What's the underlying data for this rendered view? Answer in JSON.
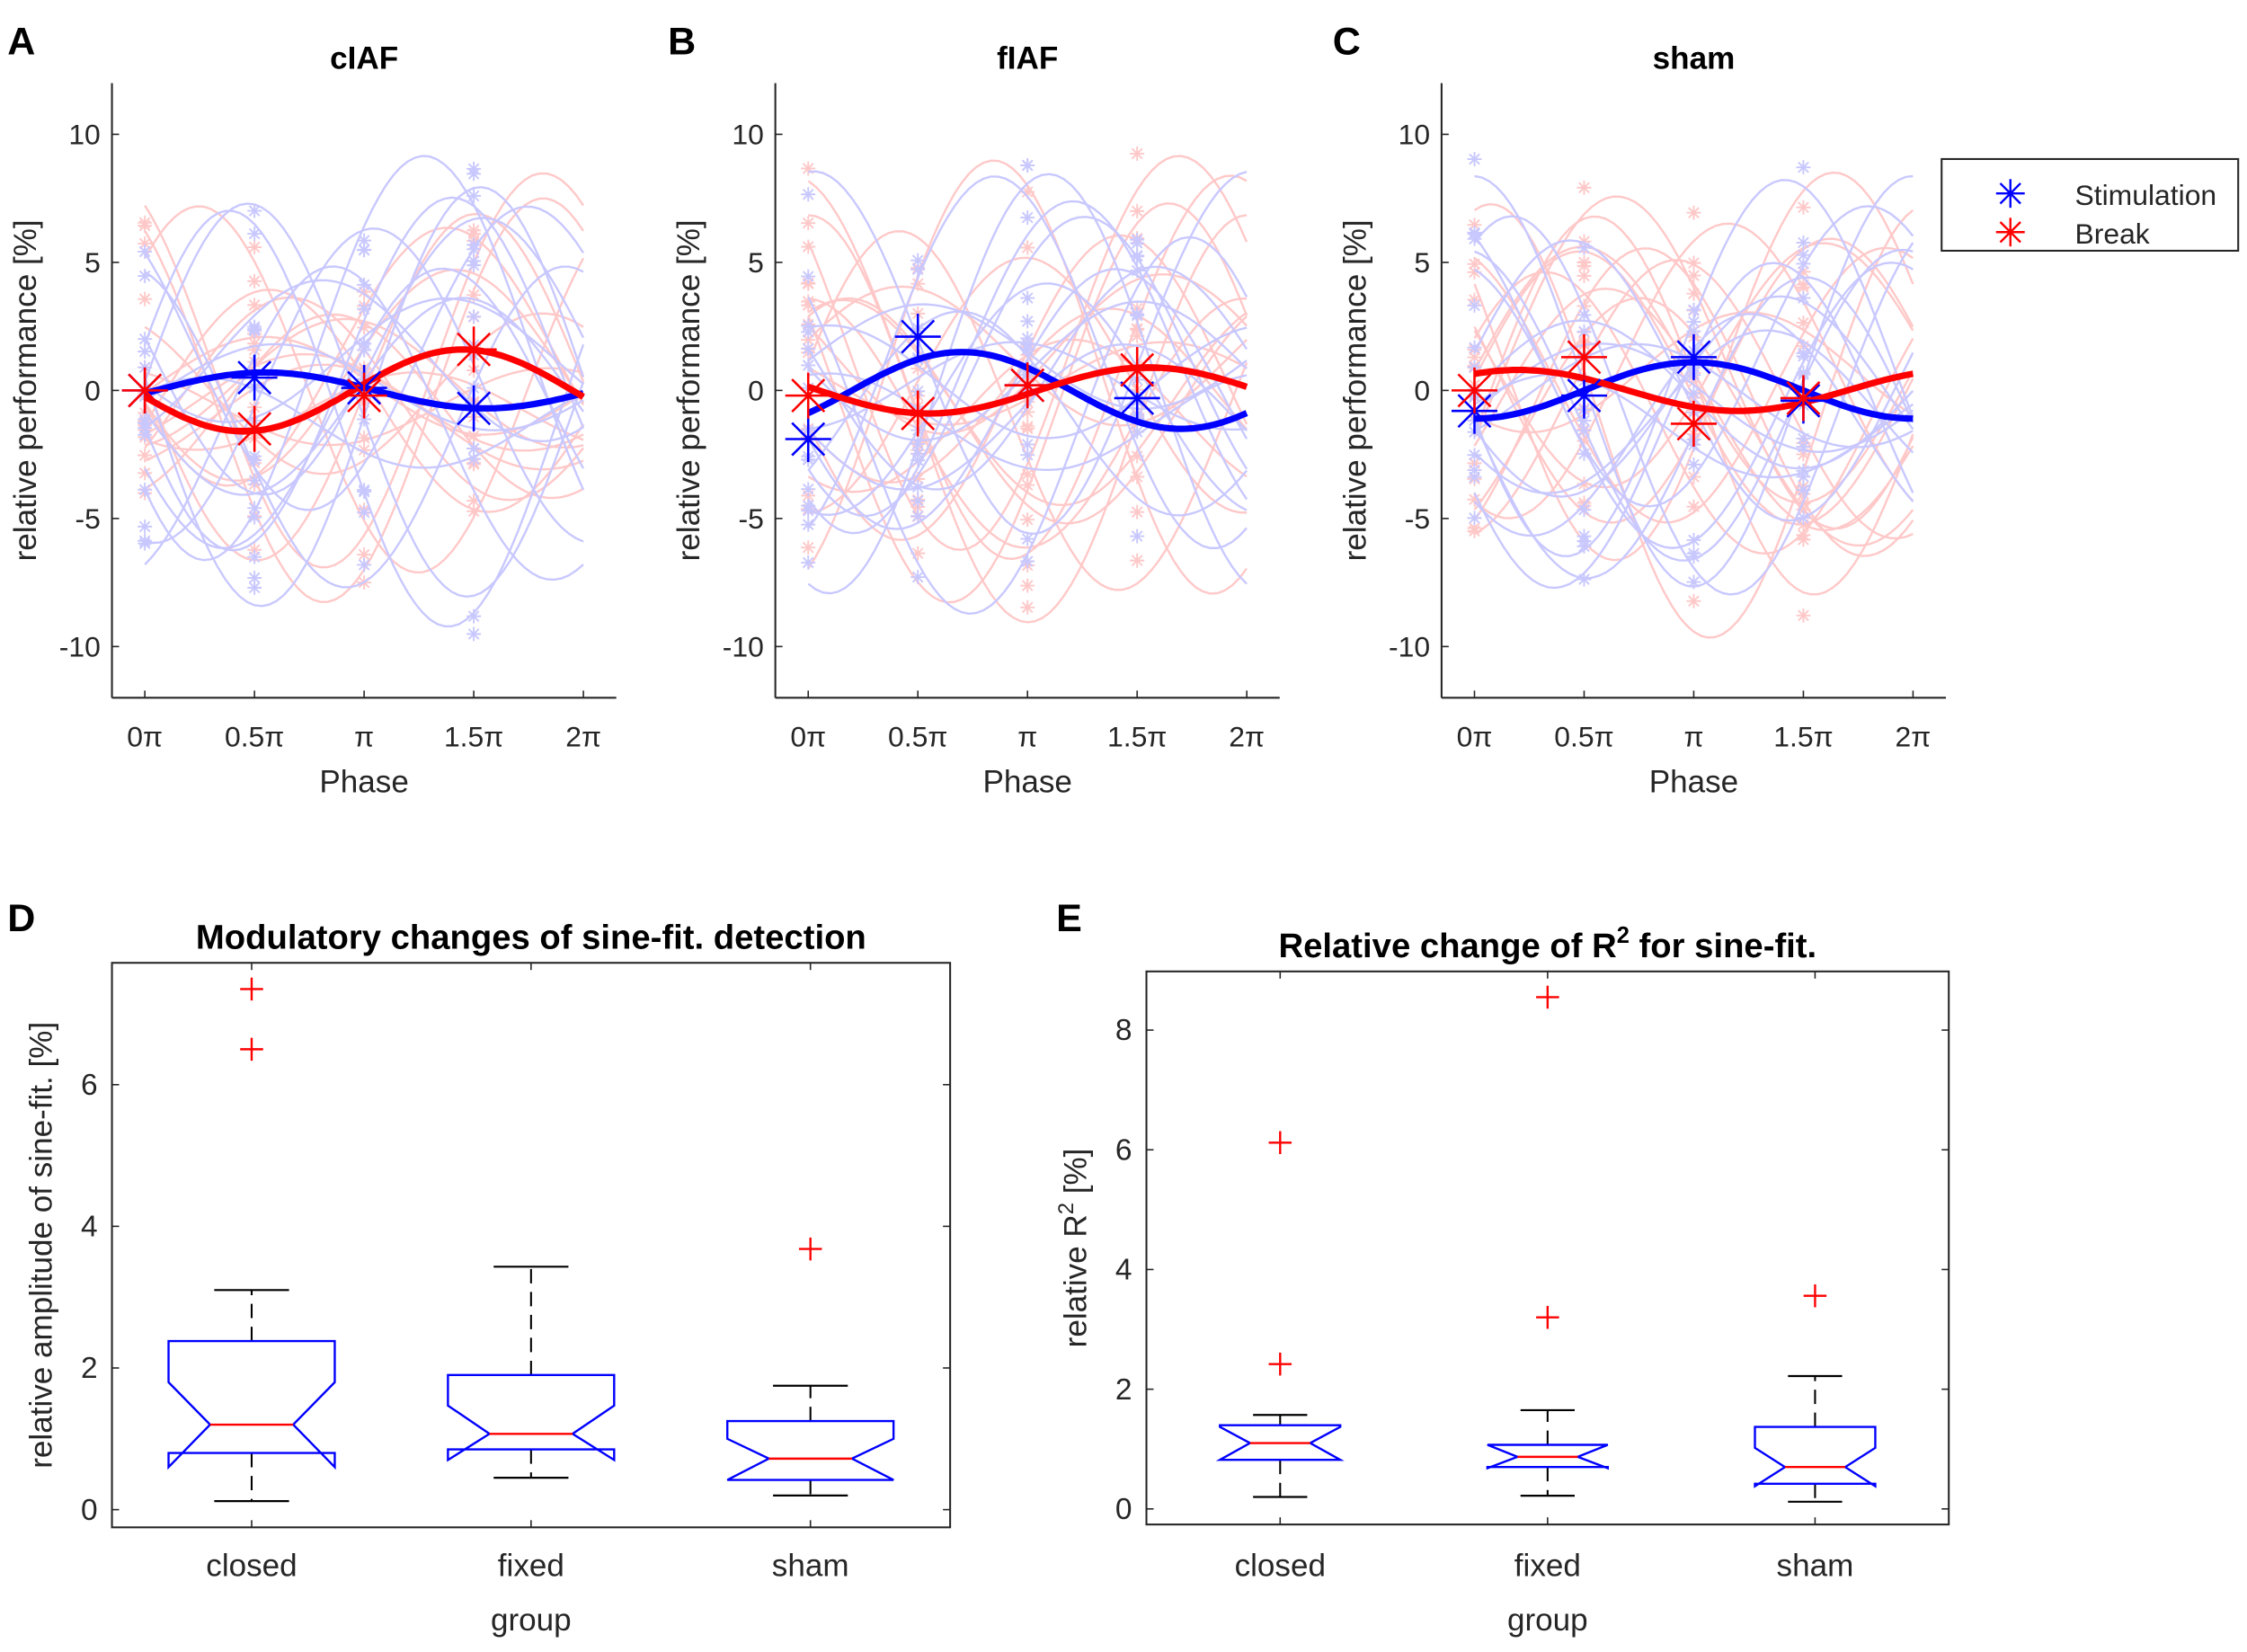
{
  "legend": {
    "placement": "right",
    "items": [
      {
        "label": "Stimulation",
        "color": "#0000ff"
      },
      {
        "label": "Break",
        "color": "#ff0000"
      }
    ]
  },
  "colors": {
    "stimulation": "#0000ff",
    "break": "#ff0000",
    "stimulation_faint": "#c8c8ff",
    "break_faint": "#ffc8c8",
    "median": "#ff0000",
    "box": "#0000ff",
    "whisker": "#000000",
    "outlier": "#ff0000"
  },
  "chart_data": [
    {
      "panel": "A",
      "type": "line",
      "title": "cIAF",
      "xlabel": "Phase",
      "ylabel": "relative performance [%]",
      "xticks": [
        "0π",
        "0.5π",
        "π",
        "1.5π",
        "2π"
      ],
      "xlim_pi": [
        -0.15,
        2.15
      ],
      "ylim": [
        -12,
        12
      ],
      "yticks": [
        -10,
        -5,
        0,
        5,
        10
      ],
      "grid": false,
      "series": [
        {
          "name": "Stimulation",
          "phases_pi": [
            0,
            0.5,
            1,
            1.5
          ],
          "means": [
            0,
            0.5,
            0.1,
            -0.7
          ],
          "fit": {
            "amplitude": 0.7,
            "peak_phase_pi": 0.55
          }
        },
        {
          "name": "Break",
          "phases_pi": [
            0,
            0.5,
            1,
            1.5
          ],
          "means": [
            0,
            -1.5,
            -0.2,
            1.6
          ],
          "fit": {
            "amplitude": 1.6,
            "peak_phase_pi": 1.45
          }
        }
      ]
    },
    {
      "panel": "B",
      "type": "line",
      "title": "fIAF",
      "xlabel": "Phase",
      "ylabel": "relative performance [%]",
      "xticks": [
        "0π",
        "0.5π",
        "π",
        "1.5π",
        "2π"
      ],
      "xlim_pi": [
        -0.15,
        2.15
      ],
      "ylim": [
        -12,
        12
      ],
      "yticks": [
        -10,
        -5,
        0,
        5,
        10
      ],
      "grid": false,
      "series": [
        {
          "name": "Stimulation",
          "phases_pi": [
            0,
            0.5,
            1,
            1.5
          ],
          "means": [
            -1.9,
            2.1,
            0.2,
            -0.3
          ],
          "fit": {
            "amplitude": 1.5,
            "peak_phase_pi": 0.7
          }
        },
        {
          "name": "Break",
          "phases_pi": [
            0,
            0.5,
            1,
            1.5
          ],
          "means": [
            -0.2,
            -0.9,
            0.2,
            0.8
          ],
          "fit": {
            "amplitude": 0.9,
            "peak_phase_pi": 1.55
          }
        }
      ]
    },
    {
      "panel": "C",
      "type": "line",
      "title": "sham",
      "xlabel": "Phase",
      "ylabel": "relative performance [%]",
      "xticks": [
        "0π",
        "0.5π",
        "π",
        "1.5π",
        "2π"
      ],
      "xlim_pi": [
        -0.15,
        2.15
      ],
      "ylim": [
        -12,
        12
      ],
      "yticks": [
        -10,
        -5,
        0,
        5,
        10
      ],
      "grid": false,
      "series": [
        {
          "name": "Stimulation",
          "phases_pi": [
            0,
            0.5,
            1,
            1.5
          ],
          "means": [
            -0.8,
            -0.2,
            1.3,
            -0.4
          ],
          "fit": {
            "amplitude": 1.1,
            "peak_phase_pi": 1.0
          }
        },
        {
          "name": "Break",
          "phases_pi": [
            0,
            0.5,
            1,
            1.5
          ],
          "means": [
            0,
            1.3,
            -1.3,
            -0.3
          ],
          "fit": {
            "amplitude": 0.8,
            "peak_phase_pi": 0.2
          }
        }
      ]
    },
    {
      "panel": "D",
      "type": "box",
      "title": "Modulatory changes of sine-fit. detection",
      "xlabel": "group",
      "ylabel": "relative amplitude of sine-fit. [%]",
      "categories": [
        "closed",
        "fixed",
        "sham"
      ],
      "ylim": [
        -0.25,
        7.72
      ],
      "yticks": [
        0,
        2,
        4,
        6
      ],
      "notched": true,
      "boxes": [
        {
          "whisker_low": 0.12,
          "q1": 0.8,
          "median": 1.2,
          "q3": 2.38,
          "whisker_high": 3.1,
          "notch": [
            0.6,
            1.8
          ],
          "outliers": [
            6.5,
            7.35
          ]
        },
        {
          "whisker_low": 0.45,
          "q1": 0.85,
          "median": 1.07,
          "q3": 1.9,
          "whisker_high": 3.43,
          "notch": [
            0.7,
            1.47
          ],
          "outliers": []
        },
        {
          "whisker_low": 0.2,
          "q1": 0.42,
          "median": 0.72,
          "q3": 1.25,
          "whisker_high": 1.75,
          "notch": [
            0.42,
            1.0
          ],
          "outliers": [
            3.68
          ]
        }
      ]
    },
    {
      "panel": "E",
      "type": "box",
      "title": "Relative change of R",
      "title_sup": "2",
      "title_end": " for sine-fit.",
      "xlabel": "group",
      "ylabel": "relative R",
      "ylabel_sup": "2",
      "ylabel_end": " [%]",
      "categories": [
        "closed",
        "fixed",
        "sham"
      ],
      "ylim": [
        -0.26,
        8.98
      ],
      "yticks": [
        0,
        2,
        4,
        6,
        8
      ],
      "notched": true,
      "boxes": [
        {
          "whisker_low": 0.2,
          "q1": 0.82,
          "median": 1.1,
          "q3": 1.4,
          "whisker_high": 1.57,
          "notch": [
            0.82,
            1.37
          ],
          "outliers": [
            2.42,
            6.12
          ]
        },
        {
          "whisker_low": 0.22,
          "q1": 0.7,
          "median": 0.87,
          "q3": 1.07,
          "whisker_high": 1.65,
          "notch": [
            0.68,
            1.07
          ],
          "outliers": [
            3.2,
            8.55
          ]
        },
        {
          "whisker_low": 0.12,
          "q1": 0.42,
          "median": 0.7,
          "q3": 1.37,
          "whisker_high": 2.22,
          "notch": [
            0.38,
            1.02
          ],
          "outliers": [
            3.56
          ]
        }
      ]
    }
  ]
}
